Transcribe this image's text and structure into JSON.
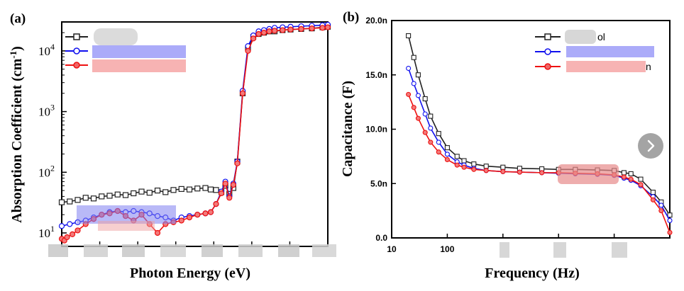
{
  "chart_data": [
    {
      "panel": "(a)",
      "type": "line",
      "xlabel": "Photon Energy (eV)",
      "ylabel": "Absorption Coefficient (cm",
      "ylabel_unit_sup": "-1",
      "ylabel_close": ")",
      "yscale": "log",
      "ylim": [
        6,
        30000
      ],
      "yticks": [
        {
          "value": 10,
          "base": "10",
          "exp": "1"
        },
        {
          "value": 100,
          "base": "10",
          "exp": "2"
        },
        {
          "value": 1000,
          "base": "10",
          "exp": "3"
        },
        {
          "value": 10000,
          "base": "10",
          "exp": "4"
        }
      ],
      "xlim": [
        0,
        1
      ],
      "series": [
        {
          "name": "",
          "color": "#222222",
          "marker": "square",
          "x": [
            0.0,
            0.03,
            0.06,
            0.09,
            0.12,
            0.15,
            0.18,
            0.21,
            0.24,
            0.27,
            0.3,
            0.33,
            0.36,
            0.39,
            0.42,
            0.45,
            0.48,
            0.51,
            0.54,
            0.56,
            0.58,
            0.6,
            0.615,
            0.63,
            0.645,
            0.66,
            0.68,
            0.7,
            0.72,
            0.74,
            0.76,
            0.78,
            0.8,
            0.83,
            0.86,
            0.9,
            0.94,
            0.98,
            1.0
          ],
          "y": [
            32,
            33,
            35,
            38,
            37,
            40,
            41,
            43,
            42,
            45,
            48,
            46,
            50,
            47,
            51,
            53,
            52,
            54,
            55,
            52,
            51,
            47,
            60,
            44,
            55,
            150,
            2000,
            11000,
            17000,
            19000,
            20000,
            21000,
            21000,
            22000,
            22500,
            23000,
            23500,
            24500,
            25000
          ]
        },
        {
          "name": "",
          "color": "#1010ee",
          "marker": "circle",
          "x": [
            0.0,
            0.03,
            0.06,
            0.09,
            0.12,
            0.15,
            0.18,
            0.21,
            0.24,
            0.27,
            0.3,
            0.33,
            0.36,
            0.39,
            0.42,
            0.45,
            0.48,
            0.51,
            0.54,
            0.56,
            0.58,
            0.6,
            0.615,
            0.63,
            0.645,
            0.66,
            0.68,
            0.7,
            0.72,
            0.74,
            0.76,
            0.78,
            0.8,
            0.83,
            0.86,
            0.9,
            0.94,
            0.98,
            1.0
          ],
          "y": [
            13,
            14,
            15,
            16,
            18,
            20,
            22,
            23,
            22,
            23,
            22,
            21,
            19,
            18,
            16,
            18,
            19,
            20,
            21,
            22,
            30,
            48,
            70,
            40,
            65,
            150,
            2200,
            12000,
            18000,
            21000,
            22000,
            23000,
            24000,
            24500,
            25000,
            25500,
            26000,
            26500,
            27000
          ]
        },
        {
          "name": "",
          "color": "#ee1111",
          "marker": "circle",
          "x": [
            0.0,
            0.01,
            0.02,
            0.04,
            0.06,
            0.09,
            0.12,
            0.15,
            0.18,
            0.21,
            0.24,
            0.27,
            0.3,
            0.33,
            0.36,
            0.39,
            0.42,
            0.45,
            0.48,
            0.51,
            0.54,
            0.56,
            0.58,
            0.6,
            0.615,
            0.63,
            0.645,
            0.66,
            0.68,
            0.7,
            0.72,
            0.74,
            0.76,
            0.78,
            0.8,
            0.83,
            0.86,
            0.9,
            0.94,
            0.98,
            1.0
          ],
          "y": [
            8,
            7.5,
            8.5,
            9.5,
            11,
            14,
            17,
            20,
            21,
            23,
            19,
            16,
            20,
            14,
            10,
            14,
            15,
            16,
            18,
            20,
            21,
            22,
            30,
            45,
            65,
            38,
            62,
            140,
            2000,
            10000,
            16000,
            19000,
            20000,
            21000,
            21500,
            22000,
            22500,
            23000,
            23500,
            24000,
            24500
          ]
        }
      ]
    },
    {
      "panel": "(b)",
      "type": "line",
      "xlabel": "Frequency (Hz)",
      "ylabel": "Capacitance (F)",
      "xscale": "log",
      "xlim": [
        10,
        1000000
      ],
      "ylim": [
        0,
        20
      ],
      "y_unit": "nF",
      "xticks": [
        {
          "value": 10,
          "label": "10"
        },
        {
          "value": 100,
          "label": "100"
        }
      ],
      "yticks": [
        {
          "value": 0,
          "label": "0.0"
        },
        {
          "value": 5,
          "label": "5.0n"
        },
        {
          "value": 10,
          "label": "10.0n"
        },
        {
          "value": 15,
          "label": "15.0n"
        },
        {
          "value": 20,
          "label": "20.0n"
        }
      ],
      "legend": {
        "position": "top-right",
        "visible_text": [
          "ol",
          "",
          "n"
        ]
      },
      "series": [
        {
          "name": "",
          "color": "#222222",
          "marker": "square",
          "x": [
            20,
            25,
            30,
            40,
            50,
            70,
            100,
            150,
            200,
            300,
            500,
            1000,
            2000,
            5000,
            10000,
            20000,
            50000,
            100000,
            150000,
            200000,
            300000,
            500000,
            700000,
            1000000
          ],
          "y": [
            18.6,
            16.6,
            15.0,
            12.8,
            11.2,
            9.6,
            8.3,
            7.5,
            7.1,
            6.8,
            6.6,
            6.5,
            6.4,
            6.35,
            6.3,
            6.3,
            6.25,
            6.2,
            6.0,
            5.9,
            5.4,
            4.2,
            3.3,
            2.1
          ]
        },
        {
          "name": "",
          "color": "#1010ee",
          "marker": "circle",
          "x": [
            20,
            25,
            30,
            40,
            50,
            70,
            100,
            150,
            200,
            300,
            500,
            1000,
            2000,
            5000,
            10000,
            20000,
            50000,
            100000,
            150000,
            200000,
            300000,
            500000,
            700000,
            1000000
          ],
          "y": [
            15.6,
            14.2,
            13.1,
            11.4,
            10.1,
            8.8,
            7.7,
            7.0,
            6.7,
            6.4,
            6.2,
            6.1,
            6.05,
            6.0,
            5.95,
            5.9,
            5.85,
            5.75,
            5.5,
            5.3,
            4.8,
            3.8,
            3.0,
            1.6
          ]
        },
        {
          "name": "",
          "color": "#ee1111",
          "marker": "circle",
          "x": [
            20,
            25,
            30,
            40,
            50,
            70,
            100,
            150,
            200,
            300,
            500,
            1000,
            2000,
            5000,
            10000,
            20000,
            50000,
            100000,
            150000,
            200000,
            300000,
            500000,
            700000,
            1000000
          ],
          "y": [
            13.2,
            12.0,
            11.0,
            9.7,
            8.8,
            7.9,
            7.2,
            6.7,
            6.5,
            6.3,
            6.2,
            6.1,
            6.05,
            6.0,
            6.0,
            5.95,
            5.9,
            5.8,
            5.6,
            5.4,
            4.9,
            3.5,
            2.5,
            0.5
          ]
        }
      ]
    }
  ],
  "nav": {
    "next_icon": "chevron-right-icon"
  }
}
